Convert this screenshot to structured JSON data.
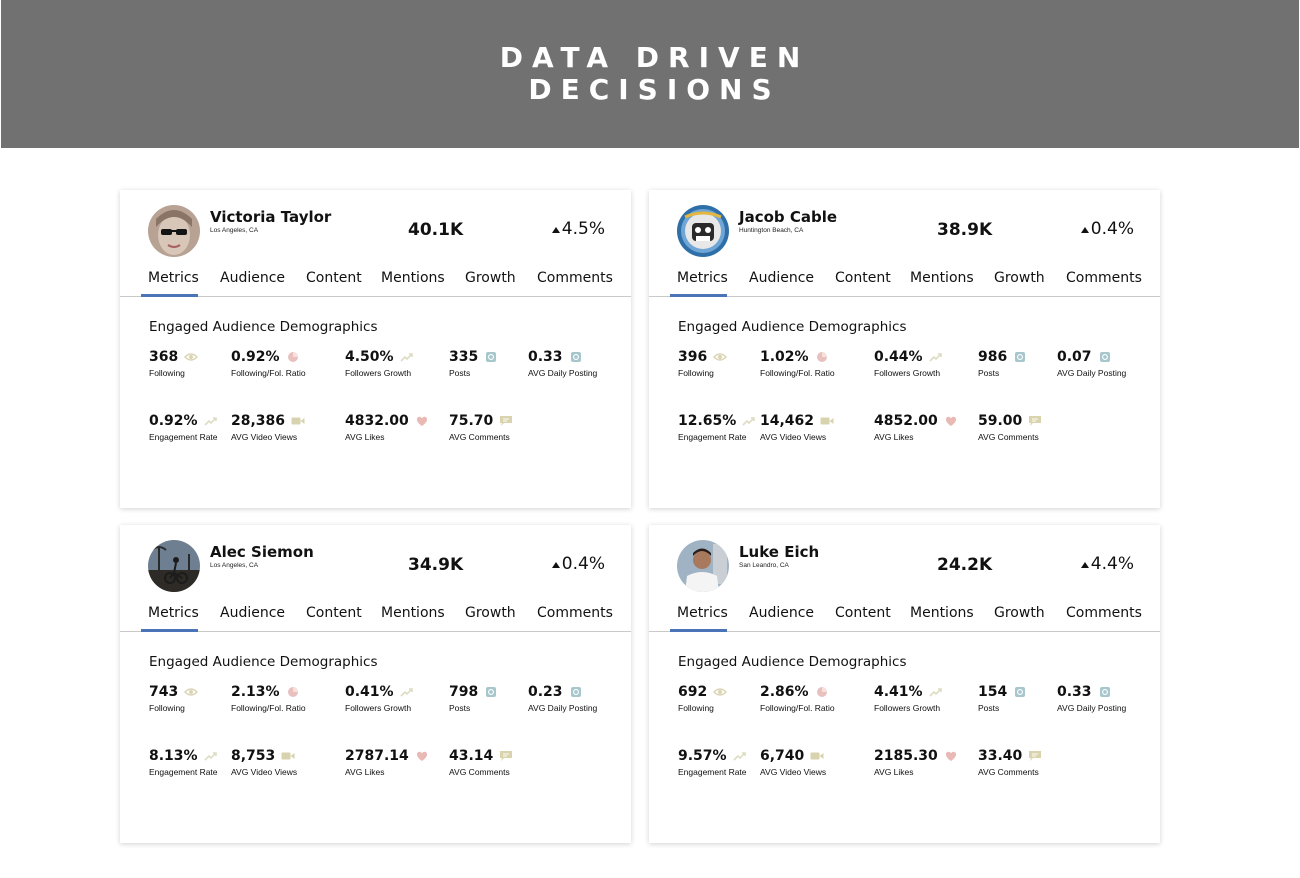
{
  "header": {
    "title_line1": "DATA DRIVEN",
    "title_line2": "DECISIONS"
  },
  "tabs": [
    "Metrics",
    "Audience",
    "Content",
    "Mentions",
    "Growth",
    "Comments"
  ],
  "section_title": "Engaged Audience Demographics",
  "metric_labels": {
    "following": "Following",
    "ratio": "Following/Fol. Ratio",
    "followers_growth": "Followers Growth",
    "posts": "Posts",
    "daily_posting": "AVG Daily Posting",
    "engagement": "Engagement Rate",
    "video_views": "AVG Video Views",
    "likes": "AVG Likes",
    "comments": "AVG Comments"
  },
  "colors": {
    "banner": "#717171",
    "tab_active": "#4a73b8",
    "icon_eye": "#d9d4b2",
    "icon_pie": "#e8c0bd",
    "icon_growth": "#dfdcc4",
    "icon_instagram": "#a7c7cc",
    "icon_video": "#d8d3af",
    "icon_heart": "#e9b9b5",
    "icon_comment": "#d9d4ad"
  },
  "profiles": [
    {
      "name": "Victoria Taylor",
      "location": "Los Angeles, CA",
      "followers": "40.1K",
      "growth": "4.5%",
      "following": "368",
      "ratio": "0.92%",
      "followers_growth": "4.50%",
      "posts": "335",
      "daily_posting": "0.33",
      "engagement": "0.92%",
      "video_views": "28,386",
      "likes": "4832.00",
      "comments": "75.70"
    },
    {
      "name": "Jacob Cable",
      "location": "Huntington Beach, CA",
      "followers": "38.9K",
      "growth": "0.4%",
      "following": "396",
      "ratio": "1.02%",
      "followers_growth": "0.44%",
      "posts": "986",
      "daily_posting": "0.07",
      "engagement": "12.65%",
      "video_views": "14,462",
      "likes": "4852.00",
      "comments": "59.00"
    },
    {
      "name": "Alec Siemon",
      "location": "Los Angeles, CA",
      "followers": "34.9K",
      "growth": "0.4%",
      "following": "743",
      "ratio": "2.13%",
      "followers_growth": "0.41%",
      "posts": "798",
      "daily_posting": "0.23",
      "engagement": "8.13%",
      "video_views": "8,753",
      "likes": "2787.14",
      "comments": "43.14"
    },
    {
      "name": "Luke Eich",
      "location": "San Leandro, CA",
      "followers": "24.2K",
      "growth": "4.4%",
      "following": "692",
      "ratio": "2.86%",
      "followers_growth": "4.41%",
      "posts": "154",
      "daily_posting": "0.33",
      "engagement": "9.57%",
      "video_views": "6,740",
      "likes": "2185.30",
      "comments": "33.40"
    }
  ]
}
